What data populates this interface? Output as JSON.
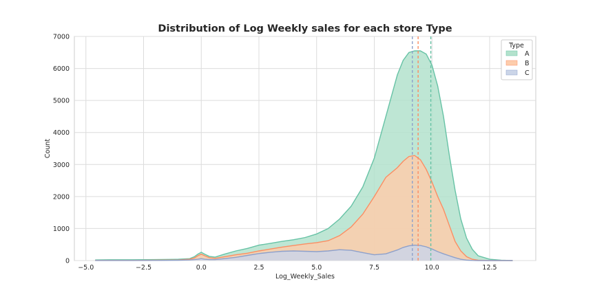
{
  "chart_data": {
    "type": "area",
    "subtype": "stacked histogram with KDE lines",
    "title": "Distribution of Log Weekly sales for each store Type",
    "xlabel": "Log_Weekly_Sales",
    "ylabel": "Count",
    "xlim": [
      -5.5,
      14.5
    ],
    "ylim": [
      0,
      7000
    ],
    "xticks": [
      -5.0,
      -2.5,
      0.0,
      2.5,
      5.0,
      7.5,
      10.0,
      12.5
    ],
    "xtick_labels": [
      "−5.0",
      "−2.5",
      "0.0",
      "2.5",
      "5.0",
      "7.5",
      "10.0",
      "12.5"
    ],
    "yticks": [
      0,
      1000,
      2000,
      3000,
      4000,
      5000,
      6000,
      7000
    ],
    "ytick_labels": [
      "0",
      "1000",
      "2000",
      "3000",
      "4000",
      "5000",
      "6000",
      "7000"
    ],
    "grid": true,
    "legend": {
      "title": "Type",
      "placement": "top-right"
    },
    "x": [
      -4.6,
      -4.0,
      -3.0,
      -2.0,
      -1.0,
      -0.5,
      -0.3,
      -0.15,
      0.0,
      0.15,
      0.35,
      0.6,
      1.0,
      1.5,
      2.0,
      2.5,
      3.0,
      3.5,
      4.0,
      4.5,
      5.0,
      5.5,
      6.0,
      6.5,
      7.0,
      7.5,
      8.0,
      8.5,
      8.75,
      9.0,
      9.25,
      9.5,
      9.75,
      10.0,
      10.25,
      10.5,
      10.75,
      11.0,
      11.25,
      11.5,
      11.75,
      12.0,
      12.5,
      13.0,
      13.5
    ],
    "series": [
      {
        "name": "A",
        "color": "#66c2a5",
        "fill": "#b3e2cd",
        "values": [
          20,
          25,
          25,
          30,
          40,
          60,
          120,
          200,
          260,
          200,
          130,
          110,
          200,
          300,
          380,
          480,
          540,
          600,
          650,
          720,
          830,
          1000,
          1300,
          1700,
          2300,
          3200,
          4500,
          5800,
          6250,
          6500,
          6550,
          6550,
          6450,
          6100,
          5450,
          4500,
          3300,
          2200,
          1300,
          700,
          350,
          150,
          40,
          10,
          0
        ],
        "mean_line": 9.95
      },
      {
        "name": "B",
        "color": "#fc8d62",
        "fill": "#fdcdac",
        "values": [
          5,
          5,
          5,
          10,
          20,
          40,
          80,
          150,
          200,
          150,
          90,
          70,
          120,
          180,
          230,
          300,
          360,
          420,
          470,
          520,
          560,
          620,
          780,
          1050,
          1450,
          2000,
          2600,
          2900,
          3100,
          3250,
          3280,
          3150,
          2850,
          2450,
          2000,
          1600,
          1100,
          600,
          300,
          120,
          40,
          10,
          0,
          0,
          0
        ],
        "mean_line": 9.4
      },
      {
        "name": "C",
        "color": "#8da0cb",
        "fill": "#cbd5e8",
        "values": [
          2,
          2,
          2,
          5,
          10,
          20,
          30,
          40,
          60,
          40,
          30,
          30,
          60,
          100,
          160,
          220,
          260,
          290,
          300,
          290,
          280,
          300,
          340,
          320,
          250,
          180,
          210,
          330,
          410,
          460,
          480,
          470,
          430,
          360,
          280,
          210,
          150,
          90,
          40,
          15,
          5,
          0,
          0,
          0,
          0
        ],
        "mean_line": 9.15
      }
    ]
  }
}
